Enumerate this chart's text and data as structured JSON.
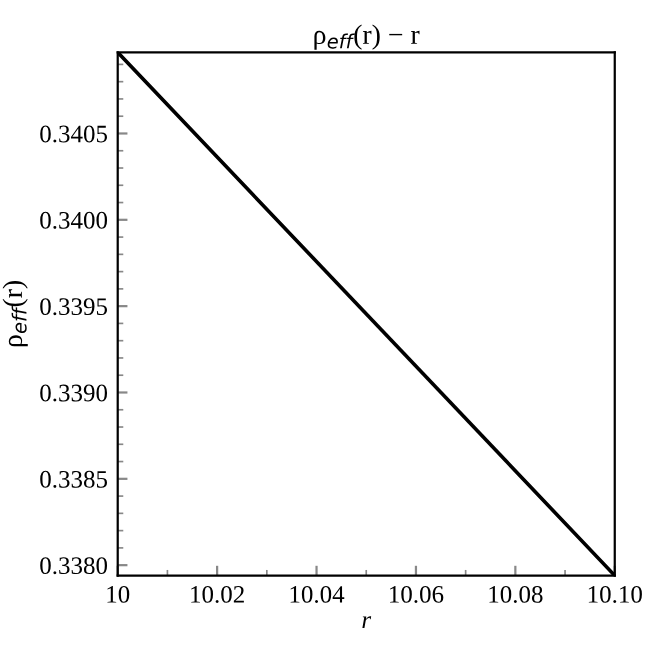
{
  "chart_data": {
    "type": "line",
    "title": "ρ$_{eff}$(r) − r",
    "xlabel": "r",
    "ylabel": "ρ$_{eff}$(r)",
    "x": [
      10,
      10.1
    ],
    "series": [
      {
        "color": "#000000",
        "values": [
          0.34097,
          0.33794
        ]
      }
    ],
    "xlim": [
      10,
      10.1
    ],
    "ylim": [
      0.33794,
      0.34097
    ],
    "xticks": [
      10,
      {
        "value": 10.02,
        "label": "10.02"
      },
      {
        "value": 10.04,
        "label": "10.04"
      },
      {
        "value": 10.06,
        "label": "10.06"
      },
      {
        "value": 10.08,
        "label": "10.08"
      },
      {
        "value": 10.1,
        "label": "10.10"
      }
    ],
    "yticks": [
      {
        "value": 0.338,
        "label": "0.3380"
      },
      0.3385,
      {
        "value": 0.339,
        "label": "0.3390"
      },
      0.3395,
      {
        "value": 0.34,
        "label": "0.3400"
      },
      0.3405
    ],
    "grid": false,
    "legend": false,
    "marker": "none",
    "line_style": "solid"
  }
}
